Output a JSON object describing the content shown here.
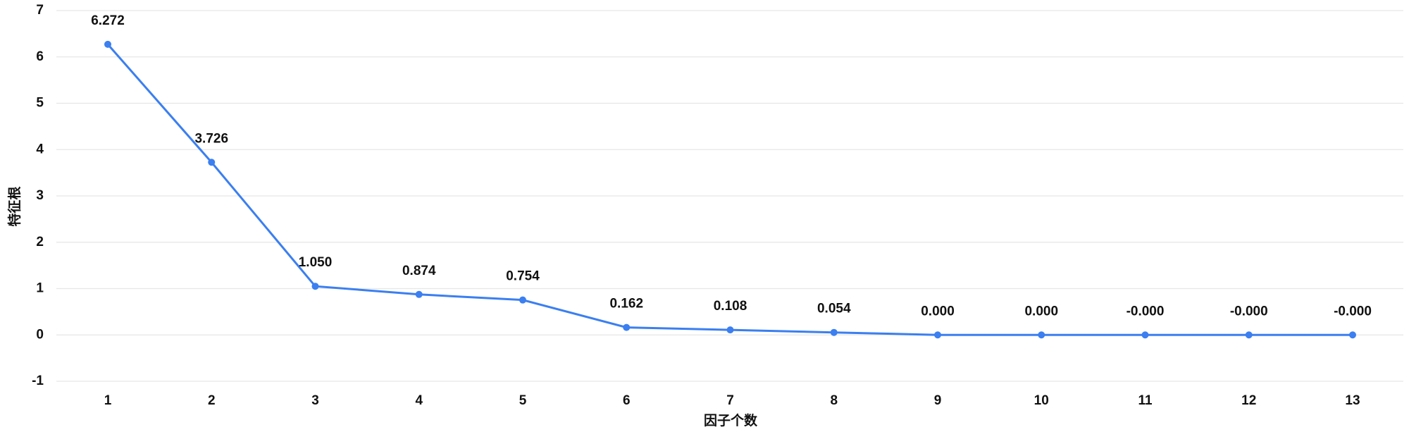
{
  "chart_data": {
    "type": "line",
    "x_label": "因子个数",
    "y_label": "特征根",
    "categories": [
      "1",
      "2",
      "3",
      "4",
      "5",
      "6",
      "7",
      "8",
      "9",
      "10",
      "11",
      "12",
      "13"
    ],
    "series": [
      {
        "name": "特征根",
        "color": "#3b7ff0",
        "values": [
          6.272,
          3.726,
          1.05,
          0.874,
          0.754,
          0.162,
          0.108,
          0.054,
          0,
          0,
          0,
          0,
          0
        ],
        "value_labels": [
          "6.272",
          "3.726",
          "1.050",
          "0.874",
          "0.754",
          "0.162",
          "0.108",
          "0.054",
          "0.000",
          "0.000",
          "-0.000",
          "-0.000",
          "-0.000"
        ]
      }
    ],
    "ylim": [
      -1,
      7
    ],
    "yticks": [
      -1,
      0,
      1,
      2,
      3,
      4,
      5,
      6,
      7
    ],
    "grid": true
  }
}
